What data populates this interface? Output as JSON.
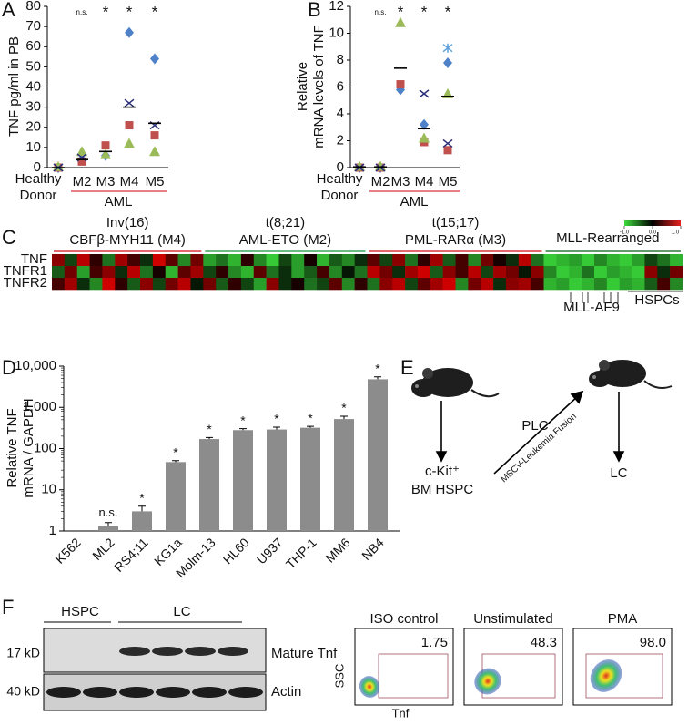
{
  "chart_data": [
    {
      "type": "scatter",
      "panel": "A",
      "ylabel": "TNF pg/ml in PB",
      "categories": [
        "Healthy Donor",
        "M2",
        "M3",
        "M4",
        "M5"
      ],
      "sig_labels": [
        null,
        "n.s.",
        "*",
        "*",
        "*"
      ],
      "group_label": "AML",
      "group_color": "#d9363e",
      "ylim": [
        0,
        80
      ],
      "yticks": [
        0,
        10,
        20,
        30,
        40,
        50,
        60,
        70,
        80
      ],
      "series": [
        {
          "marker": "diamond",
          "color": "#4f81c9",
          "values": [
            0,
            4,
            6,
            67,
            54
          ]
        },
        {
          "marker": "square",
          "color": "#c0504d",
          "values": [
            0,
            3,
            11,
            21,
            16
          ]
        },
        {
          "marker": "triangle",
          "color": "#9bbb59",
          "values": [
            0.5,
            8,
            6.5,
            12,
            8
          ]
        },
        {
          "marker": "cross",
          "color": "#2b2f7a",
          "values": [
            0,
            5,
            null,
            32,
            21
          ]
        },
        {
          "marker": "mean",
          "color": "#000000",
          "values": [
            0,
            4,
            8,
            30,
            22
          ]
        }
      ]
    },
    {
      "type": "scatter",
      "panel": "B",
      "ylabel": [
        "Relative",
        "mRNA levels of TNF"
      ],
      "categories": [
        "Healthy Donor",
        "M2",
        "M3",
        "M4",
        "M5"
      ],
      "sig_labels": [
        null,
        "n.s.",
        "*",
        "*",
        "*"
      ],
      "group_label": "AML",
      "group_color": "#d9363e",
      "ylim": [
        0,
        12
      ],
      "yticks": [
        0,
        2,
        4,
        6,
        8,
        10,
        12
      ],
      "series": [
        {
          "marker": "diamond",
          "color": "#4f81c9",
          "values": [
            0,
            0,
            5.8,
            3.2,
            7.8
          ]
        },
        {
          "marker": "square",
          "color": "#c0504d",
          "values": [
            0,
            0,
            6.2,
            1.9,
            1.3
          ]
        },
        {
          "marker": "triangle",
          "color": "#9bbb59",
          "values": [
            0.1,
            0.1,
            10.8,
            2.2,
            5.5
          ]
        },
        {
          "marker": "cross",
          "color": "#2b2f7a",
          "values": [
            0,
            0,
            null,
            5.5,
            1.8
          ]
        },
        {
          "marker": "asterisk",
          "color": "#5fa0dc",
          "values": [
            null,
            null,
            null,
            null,
            8.9
          ]
        },
        {
          "marker": "mean",
          "color": "#000000",
          "values": [
            0.05,
            0.05,
            7.4,
            2.9,
            5.3
          ]
        }
      ]
    },
    {
      "type": "heatmap",
      "panel": "C",
      "rows": [
        "TNF",
        "TNFR1",
        "TNFR2"
      ],
      "colorbar_ticks": [
        {
          "value": -1,
          "label": "-1.0"
        },
        {
          "value": 0,
          "label": "0.0"
        },
        {
          "value": 1,
          "label": "1.0"
        }
      ],
      "annotations": [
        "MLL-AF9",
        "HSPCs"
      ],
      "groups": [
        {
          "title": "Inv(16)",
          "subtitle": "CBFβ-MYH11 (M4)",
          "color": "#d9363e",
          "values": [
            [
              0.6,
              -0.3,
              0.8,
              0.2,
              -0.5,
              0.7,
              0.3,
              -0.2,
              0.9,
              0.4,
              -0.6,
              0.5
            ],
            [
              -0.4,
              0.5,
              -0.7,
              0.3,
              0.6,
              -0.2,
              0.8,
              -0.5,
              0.1,
              -0.8,
              0.4,
              0.7
            ],
            [
              0.3,
              0.7,
              -0.2,
              -0.6,
              0.9,
              0.2,
              -0.4,
              0.6,
              -0.3,
              0.5,
              0.8,
              -0.1
            ]
          ]
        },
        {
          "title": "t(8;21)",
          "subtitle": "AML-ETO (M2)",
          "color": "#3aa65a",
          "values": [
            [
              -0.7,
              -0.5,
              -0.8,
              0.2,
              -0.6,
              -0.9,
              -0.3,
              -0.7,
              0.1,
              -0.8,
              -0.4,
              -0.6,
              -0.2
            ],
            [
              -0.3,
              0.2,
              -0.6,
              -0.8,
              0.4,
              -0.5,
              -0.2,
              -0.7,
              -0.4,
              0.3,
              -0.6,
              -0.1,
              -0.5
            ],
            [
              0.5,
              -0.4,
              0.2,
              -0.3,
              -0.7,
              0.6,
              -0.2,
              0.1,
              -0.5,
              -0.3,
              0.4,
              -0.6,
              0.2
            ]
          ]
        },
        {
          "title": "t(15;17)",
          "subtitle": "PML-RARα (M3)",
          "color": "#d9363e",
          "values": [
            [
              0.4,
              -0.3,
              0.6,
              -0.5,
              0.2,
              0.7,
              -0.4,
              0.3,
              -0.6,
              0.5,
              0.1,
              -0.2,
              0.8,
              -0.5
            ],
            [
              0.8,
              0.5,
              -0.2,
              0.7,
              0.9,
              -0.4,
              0.6,
              0.3,
              0.8,
              -0.3,
              0.7,
              0.5,
              -0.1,
              0.6
            ],
            [
              -0.5,
              0.6,
              0.8,
              -0.3,
              0.4,
              0.7,
              0.9,
              -0.6,
              0.5,
              0.8,
              -0.2,
              0.6,
              0.7,
              0.3
            ]
          ]
        },
        {
          "title": "MLL-Rearranged",
          "color": "#2f7a3a",
          "values": [
            [
              -0.9,
              -0.8,
              -0.7,
              -0.9,
              -0.6,
              -0.8,
              -0.9,
              -0.7,
              -0.3,
              -0.5,
              -0.8
            ],
            [
              -0.6,
              -0.9,
              -0.8,
              -0.5,
              -0.9,
              -0.7,
              -0.8,
              -0.9,
              0.6,
              -0.2,
              0.5
            ],
            [
              -0.8,
              -0.7,
              -0.9,
              -0.8,
              -0.6,
              -0.9,
              -0.7,
              -0.8,
              -0.4,
              0.3,
              -0.6
            ]
          ]
        }
      ]
    },
    {
      "type": "bar",
      "panel": "D",
      "ylabel": [
        "Relative TNF",
        "mRNA / GAPDH"
      ],
      "log": true,
      "color": "#8c8c8c",
      "categories": [
        "K562",
        "ML2",
        "RS4;11",
        "KG1a",
        "Molm-13",
        "HL60",
        "U937",
        "THP-1",
        "MM6",
        "NB4"
      ],
      "values": [
        1,
        1.3,
        3,
        47,
        170,
        280,
        290,
        320,
        520,
        4800
      ],
      "errors": [
        null,
        0.3,
        1,
        4,
        15,
        25,
        40,
        25,
        90,
        700
      ],
      "sig_labels": [
        null,
        "n.s.",
        "*",
        "*",
        "*",
        "*",
        "*",
        "*",
        "*",
        "*"
      ],
      "ylim": [
        1,
        10000
      ],
      "yticks": [
        1,
        10,
        100,
        {
          "value": 1000,
          "label": "1,000"
        },
        {
          "value": 10000,
          "label": "10,000"
        }
      ]
    }
  ],
  "diagram": {
    "panel": "E",
    "source_lines": [
      "c-Kit⁺",
      "BM HSPC"
    ],
    "arrow_top": "PLC",
    "arrow_bottom": "MSCV-Leukemia Fusion",
    "target": "LC"
  },
  "blot": {
    "panel": "F",
    "groups": [
      "HSPC",
      "LC"
    ],
    "markers": [
      "17 kD",
      "40 kD"
    ],
    "bands": [
      "Mature Tnf",
      "Actin"
    ]
  },
  "flow": {
    "xlabel": "Tnf",
    "ylabel": "SSC",
    "panels": [
      {
        "title": "ISO control",
        "value": "1.75"
      },
      {
        "title": "Unstimulated",
        "value": "48.3"
      },
      {
        "title": "PMA",
        "value": "98.0"
      }
    ]
  }
}
